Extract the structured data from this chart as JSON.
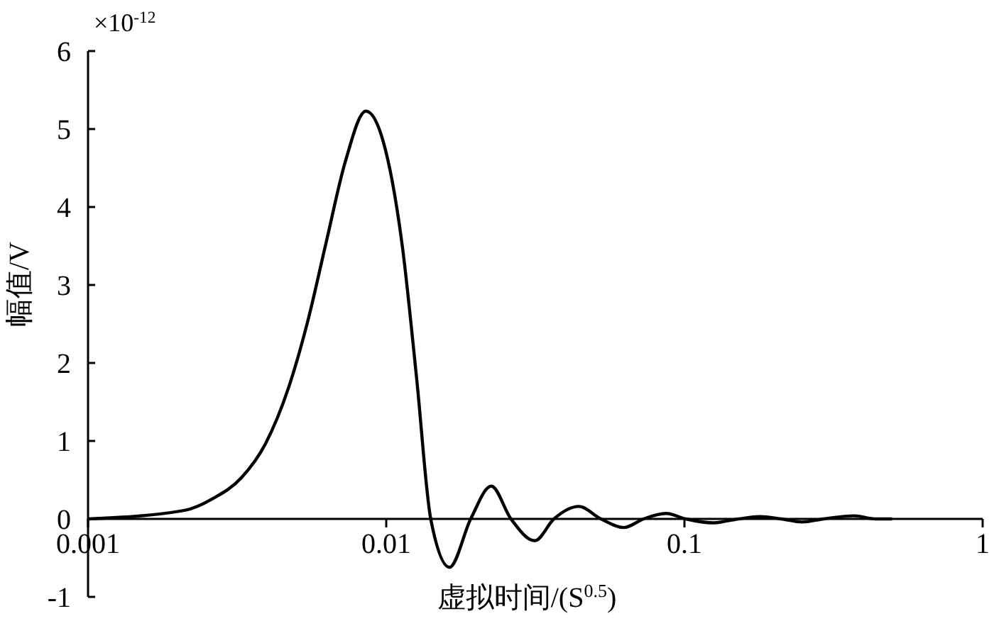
{
  "chart_data": {
    "type": "line",
    "xlabel": "虚拟时间/(S$^{0.5}$)",
    "ylabel": "幅值/V",
    "annotations": [
      "×10$^{-12}$"
    ],
    "log": "x",
    "grid": false,
    "marker": "none",
    "line_style": "solid",
    "xlim": [
      0.001,
      1
    ],
    "xticks": [
      0.001,
      0.01,
      0.1,
      1
    ],
    "ylim": [
      -1,
      6
    ],
    "yticks": [
      -1,
      0,
      1,
      2,
      3,
      4,
      5,
      6
    ],
    "series": [
      {
        "color": "#000000",
        "x": [
          0.001,
          0.00211,
          0.00262,
          0.00327,
          0.00393,
          0.00471,
          0.00545,
          0.0063,
          0.0073,
          0.00855,
          0.00977,
          0.01132,
          0.01264,
          0.0141,
          0.0163,
          0.0192,
          0.0225,
          0.0262,
          0.0315,
          0.0365,
          0.0442,
          0.0525,
          0.0626,
          0.073,
          0.0867,
          0.101,
          0.124,
          0.152,
          0.179,
          0.211,
          0.248,
          0.293,
          0.371,
          0.438,
          0.497
        ],
        "values": [
          0,
          0.11,
          0.26,
          0.53,
          0.96,
          1.69,
          2.53,
          3.56,
          4.59,
          5.23,
          4.84,
          3.5,
          1.81,
          0,
          -0.62,
          0,
          0.42,
          0,
          -0.28,
          0,
          0.16,
          0,
          -0.11,
          0,
          0.07,
          0,
          -0.05,
          0,
          0.03,
          0,
          -0.04,
          0,
          0.04,
          0,
          0
        ]
      }
    ]
  }
}
